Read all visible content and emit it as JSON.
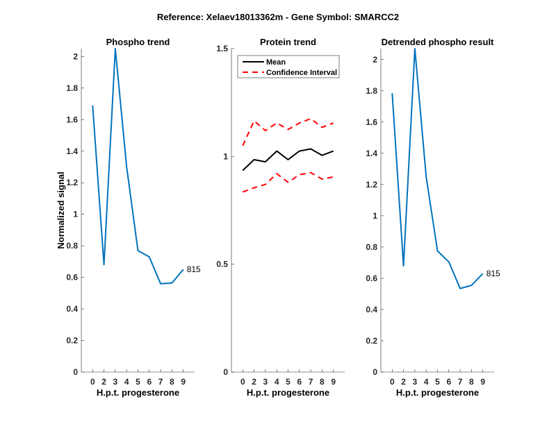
{
  "figure_title": "Reference:  Xelaev18013362m - Gene Symbol:  SMARCC2",
  "chart_data": [
    {
      "type": "line",
      "title": "Phospho trend",
      "xlabel": "H.p.t. progesterone",
      "ylabel": "Normalized signal",
      "categories": [
        "0",
        "2",
        "3",
        "4",
        "5",
        "6",
        "7",
        "8",
        "9"
      ],
      "ylim": [
        0,
        2.05
      ],
      "yticks": [
        0,
        0.2,
        0.4,
        0.6,
        0.8,
        1,
        1.2,
        1.4,
        1.6,
        1.8,
        2
      ],
      "series": [
        {
          "name": "815",
          "color": "#0072BD",
          "style": "solid",
          "values": [
            1.69,
            0.68,
            2.05,
            1.3,
            0.77,
            0.73,
            0.56,
            0.565,
            0.65
          ]
        }
      ],
      "annotation": "815"
    },
    {
      "type": "line",
      "title": "Protein trend",
      "xlabel": "H.p.t. progesterone",
      "ylabel": "",
      "categories": [
        "0",
        "2",
        "3",
        "4",
        "5",
        "6",
        "7",
        "8",
        "9"
      ],
      "ylim": [
        0,
        1.5
      ],
      "yticks": [
        0,
        0.5,
        1,
        1.5
      ],
      "legend": {
        "placement": "top-left",
        "entries": [
          "Mean",
          "Confidence Interval"
        ]
      },
      "series": [
        {
          "name": "Mean",
          "color": "#000000",
          "style": "solid",
          "values": [
            0.935,
            0.985,
            0.975,
            1.025,
            0.985,
            1.025,
            1.035,
            1.005,
            1.025
          ]
        },
        {
          "name": "Confidence Interval",
          "color": "#FF0000",
          "style": "dashed",
          "values": [
            1.05,
            1.165,
            1.12,
            1.155,
            1.125,
            1.155,
            1.175,
            1.135,
            1.155
          ]
        },
        {
          "name": "Confidence Interval lower",
          "color": "#FF0000",
          "style": "dashed",
          "values": [
            0.835,
            0.855,
            0.87,
            0.92,
            0.88,
            0.915,
            0.925,
            0.895,
            0.905
          ]
        }
      ]
    },
    {
      "type": "line",
      "title": "Detrended phospho result",
      "xlabel": "H.p.t. progesterone",
      "ylabel": "",
      "categories": [
        "0",
        "2",
        "3",
        "4",
        "5",
        "6",
        "7",
        "8",
        "9"
      ],
      "ylim": [
        0,
        2.07
      ],
      "yticks": [
        0,
        0.2,
        0.4,
        0.6,
        0.8,
        1,
        1.2,
        1.4,
        1.6,
        1.8,
        2
      ],
      "series": [
        {
          "name": "815",
          "color": "#0072BD",
          "style": "solid",
          "values": [
            1.785,
            0.68,
            2.07,
            1.25,
            0.775,
            0.705,
            0.535,
            0.555,
            0.63
          ]
        }
      ],
      "annotation": "815"
    }
  ]
}
